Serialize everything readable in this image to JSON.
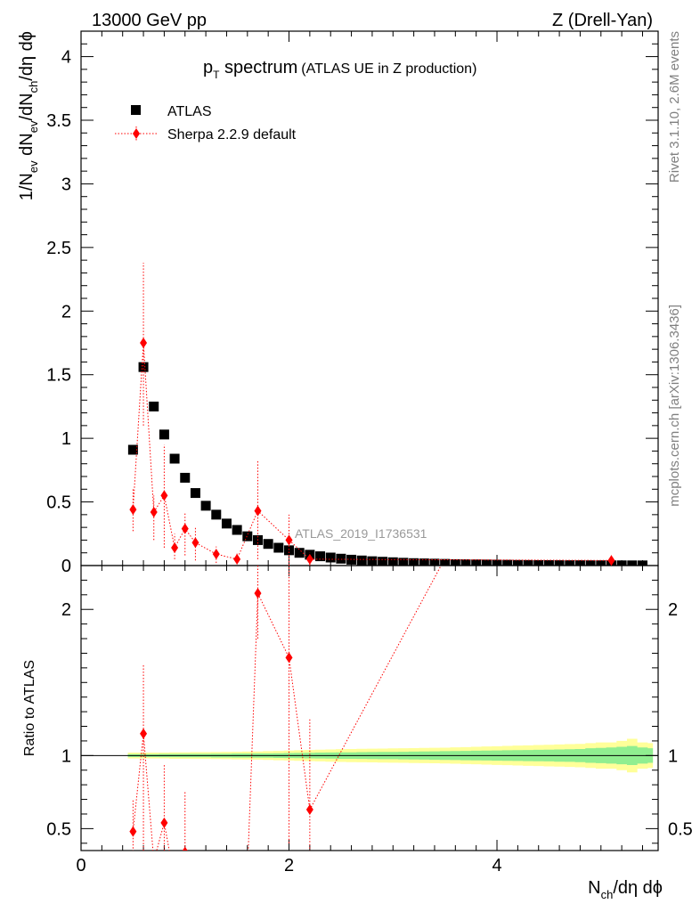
{
  "header": {
    "left": "13000 GeV pp",
    "right": "Z (Drell-Yan)"
  },
  "side_labels": {
    "rivet": "Rivet 3.1.10,  2.6M events",
    "mcplots": "mcplots.cern.ch [arXiv:1306.3436]"
  },
  "chart_data": [
    {
      "panel": "main",
      "type": "scatter",
      "title_main": "p",
      "title_sub": "T",
      "title_tail": " spectrum",
      "title_note": "(ATLAS UE in Z production)",
      "ylabel": "1/N_ev dN_ev/dN_ch/dη dϕ",
      "ylim": [
        0,
        4.2
      ],
      "yticks": [
        0,
        0.5,
        1,
        1.5,
        2,
        2.5,
        3,
        3.5,
        4
      ],
      "yticklabels": [
        "0",
        "0.5",
        "1",
        "1.5",
        "2",
        "2.5",
        "3",
        "3.5",
        "4"
      ],
      "xlim": [
        0,
        5.55
      ],
      "analysis_label": "ATLAS_2019_I1736531",
      "legend": [
        "ATLAS",
        "Sherpa 2.2.9 default"
      ],
      "series": [
        {
          "name": "ATLAS",
          "color": "#000000",
          "marker": "square",
          "x": [
            0.5,
            0.6,
            0.7,
            0.8,
            0.9,
            1.0,
            1.1,
            1.2,
            1.3,
            1.4,
            1.5,
            1.6,
            1.7,
            1.8,
            1.9,
            2.0,
            2.1,
            2.2,
            2.3,
            2.4,
            2.5,
            2.6,
            2.7,
            2.8,
            2.9,
            3.0,
            3.1,
            3.2,
            3.3,
            3.4,
            3.5,
            3.6,
            3.7,
            3.8,
            3.9,
            4.0,
            4.1,
            4.2,
            4.3,
            4.4,
            4.5,
            4.6,
            4.7,
            4.8,
            4.9,
            5.0,
            5.1,
            5.2,
            5.3,
            5.4
          ],
          "y": [
            0.91,
            1.56,
            1.25,
            1.03,
            0.84,
            0.69,
            0.57,
            0.47,
            0.4,
            0.33,
            0.28,
            0.23,
            0.2,
            0.17,
            0.14,
            0.12,
            0.1,
            0.085,
            0.073,
            0.063,
            0.054,
            0.046,
            0.04,
            0.034,
            0.03,
            0.026,
            0.022,
            0.019,
            0.017,
            0.015,
            0.013,
            0.011,
            0.01,
            0.009,
            0.008,
            0.007,
            0.006,
            0.005,
            0.0045,
            0.004,
            0.0035,
            0.003,
            0.0028,
            0.0025,
            0.0022,
            0.002,
            0.0018,
            0.0016,
            0.0014,
            0.0012
          ]
        },
        {
          "name": "Sherpa 2.2.9 default",
          "color": "#ff0000",
          "marker": "diamond",
          "line": "dotted",
          "x": [
            0.5,
            0.6,
            0.7,
            0.8,
            0.9,
            1.0,
            1.1,
            1.3,
            1.5,
            1.7,
            2.0,
            2.2,
            5.1
          ],
          "y": [
            0.44,
            1.75,
            0.42,
            0.55,
            0.14,
            0.29,
            0.18,
            0.09,
            0.05,
            0.43,
            0.2,
            0.05,
            0.04
          ],
          "err_up": [
            0.6,
            2.38,
            0.55,
            0.95,
            0.25,
            0.42,
            0.3,
            0.15,
            0.1,
            0.82,
            0.4,
            0.1,
            0.08
          ],
          "err_down": [
            0.27,
            1.1,
            0.2,
            0.14,
            0.05,
            0.08,
            0.04,
            0.02,
            0.01,
            0.05,
            0.0,
            0.0,
            0.0
          ]
        }
      ]
    },
    {
      "panel": "ratio",
      "type": "line",
      "ylabel": "Ratio to ATLAS",
      "ylim": [
        0.35,
        2.3
      ],
      "yticks": [
        0.5,
        1,
        2
      ],
      "yticklabels": [
        "0.5",
        "1",
        "2"
      ],
      "xlim": [
        0,
        5.55
      ],
      "xticks": [
        0,
        2,
        4
      ],
      "xticklabels": [
        "0",
        "2",
        "4"
      ],
      "xlabel": "N_ch/dη dϕ",
      "band_x": [
        0.45,
        0.55,
        0.65,
        0.75,
        0.85,
        0.95,
        1.05,
        1.15,
        1.25,
        1.35,
        1.45,
        1.55,
        1.65,
        1.75,
        1.85,
        1.95,
        2.05,
        2.15,
        2.25,
        2.35,
        2.45,
        2.55,
        2.65,
        2.75,
        2.85,
        2.95,
        3.05,
        3.15,
        3.25,
        3.35,
        3.45,
        3.55,
        3.65,
        3.75,
        3.85,
        3.95,
        4.05,
        4.15,
        4.25,
        4.35,
        4.45,
        4.55,
        4.65,
        4.75,
        4.85,
        4.95,
        5.05,
        5.15,
        5.25,
        5.35,
        5.45,
        5.5
      ],
      "band_inner": [
        0.01,
        0.01,
        0.01,
        0.011,
        0.011,
        0.012,
        0.012,
        0.012,
        0.013,
        0.013,
        0.014,
        0.014,
        0.015,
        0.015,
        0.016,
        0.017,
        0.018,
        0.019,
        0.02,
        0.021,
        0.022,
        0.022,
        0.023,
        0.024,
        0.025,
        0.025,
        0.026,
        0.027,
        0.028,
        0.029,
        0.03,
        0.031,
        0.032,
        0.033,
        0.034,
        0.035,
        0.036,
        0.037,
        0.038,
        0.039,
        0.04,
        0.042,
        0.043,
        0.045,
        0.05,
        0.052,
        0.055,
        0.06,
        0.065,
        0.055,
        0.05,
        0.05
      ],
      "band_outer": [
        0.02,
        0.02,
        0.02,
        0.02,
        0.022,
        0.022,
        0.023,
        0.023,
        0.024,
        0.025,
        0.026,
        0.027,
        0.028,
        0.03,
        0.032,
        0.034,
        0.036,
        0.038,
        0.04,
        0.042,
        0.044,
        0.045,
        0.046,
        0.047,
        0.048,
        0.049,
        0.05,
        0.051,
        0.052,
        0.053,
        0.054,
        0.056,
        0.058,
        0.06,
        0.062,
        0.064,
        0.066,
        0.068,
        0.07,
        0.072,
        0.074,
        0.076,
        0.078,
        0.08,
        0.085,
        0.09,
        0.09,
        0.1,
        0.115,
        0.09,
        0.085,
        0.085
      ],
      "band_colors": {
        "inner": "#90ee90",
        "outer": "#ffff99"
      },
      "series": [
        {
          "name": "Sherpa 2.2.9 default",
          "color": "#ff0000",
          "x": [
            0.5,
            0.6,
            0.7,
            0.8,
            0.9,
            1.0,
            1.6,
            1.7,
            2.0,
            2.2,
            3.5
          ],
          "y": [
            0.48,
            1.15,
            0.28,
            0.54,
            0.15,
            0.34,
            0.2,
            2.11,
            1.67,
            0.63,
            2.35
          ],
          "err_up": [
            0.7,
            1.63,
            0.35,
            0.94,
            0.2,
            0.75,
            0.3,
            2.3,
            2.3,
            1.25,
            2.35
          ],
          "err_down": [
            0.3,
            0.35,
            0.2,
            0.2,
            0.1,
            0.1,
            0.1,
            1.8,
            0.4,
            0.3,
            2.35
          ],
          "marker_visible": [
            true,
            true,
            false,
            true,
            false,
            true,
            false,
            true,
            true,
            true,
            false
          ]
        }
      ]
    }
  ]
}
